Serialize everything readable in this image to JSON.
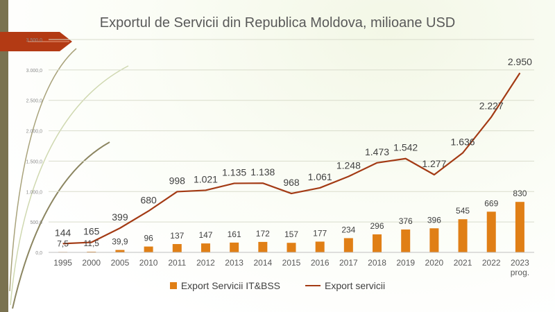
{
  "chart_data": {
    "type": "bar+line",
    "title": "Exportul de Servicii din Republica Moldova, milioane USD",
    "categories": [
      "1995",
      "2000",
      "2005",
      "2010",
      "2011",
      "2012",
      "2013",
      "2014",
      "2015",
      "2016",
      "2017",
      "2018",
      "2019",
      "2020",
      "2021",
      "2022",
      "2023"
    ],
    "last_category_sub": "prog.",
    "y_ticks": [
      "0,0",
      "500,0",
      "1.000,0",
      "1.500,0",
      "2.000,0",
      "2.500,0",
      "3.000,0",
      "3.500,0"
    ],
    "ylim": [
      0,
      3500
    ],
    "series": [
      {
        "name": "Export Servicii IT&BSS",
        "type": "bar",
        "color": "#e07f16",
        "values": [
          7.5,
          11.5,
          39.9,
          96,
          137,
          147,
          161,
          172,
          157,
          177,
          234,
          296,
          376,
          396,
          545,
          669,
          830
        ],
        "labels": [
          "7,5",
          "11,5",
          "39,9",
          "96",
          "137",
          "147",
          "161",
          "172",
          "157",
          "177",
          "234",
          "296",
          "376",
          "396",
          "545",
          "669",
          "830"
        ]
      },
      {
        "name": "Export servicii",
        "type": "line",
        "color": "#a33a14",
        "values": [
          144,
          165,
          399,
          680,
          998,
          1021,
          1135,
          1138,
          968,
          1061,
          1248,
          1473,
          1542,
          1277,
          1636,
          2227,
          2950
        ],
        "labels": [
          "144",
          "165",
          "399",
          "680",
          "998",
          "1.021",
          "1.135",
          "1.138",
          "968",
          "1.061",
          "1.248",
          "1.473",
          "1.542",
          "1.277",
          "1.636",
          "2.227",
          "2.950"
        ]
      }
    ]
  }
}
